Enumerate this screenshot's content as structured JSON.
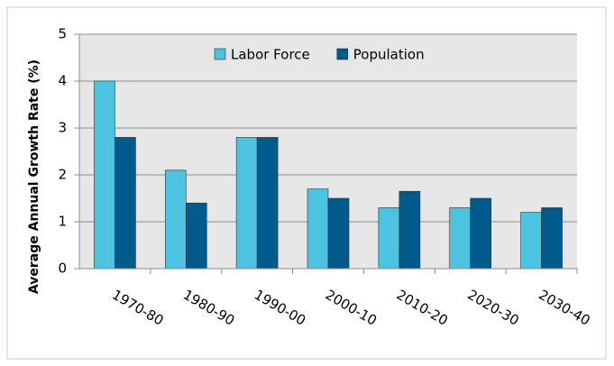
{
  "chart_data": {
    "type": "bar",
    "y_label": "Average Annual Growth Rate (%)",
    "categories": [
      "1970-80",
      "1980-90",
      "1990-00",
      "2000-10",
      "2010-20",
      "2020-30",
      "2030-40"
    ],
    "series": [
      {
        "name": "Labor Force",
        "color": "#4bc3e1",
        "values": [
          4.0,
          2.1,
          2.8,
          1.7,
          1.3,
          1.3,
          1.2
        ]
      },
      {
        "name": "Population",
        "color": "#005a8b",
        "values": [
          2.8,
          1.4,
          2.8,
          1.5,
          1.65,
          1.5,
          1.3
        ]
      }
    ],
    "ylim": [
      0,
      5
    ],
    "yticks": [
      0,
      1,
      2,
      3,
      4,
      5
    ],
    "grid": true,
    "legend": "top"
  }
}
